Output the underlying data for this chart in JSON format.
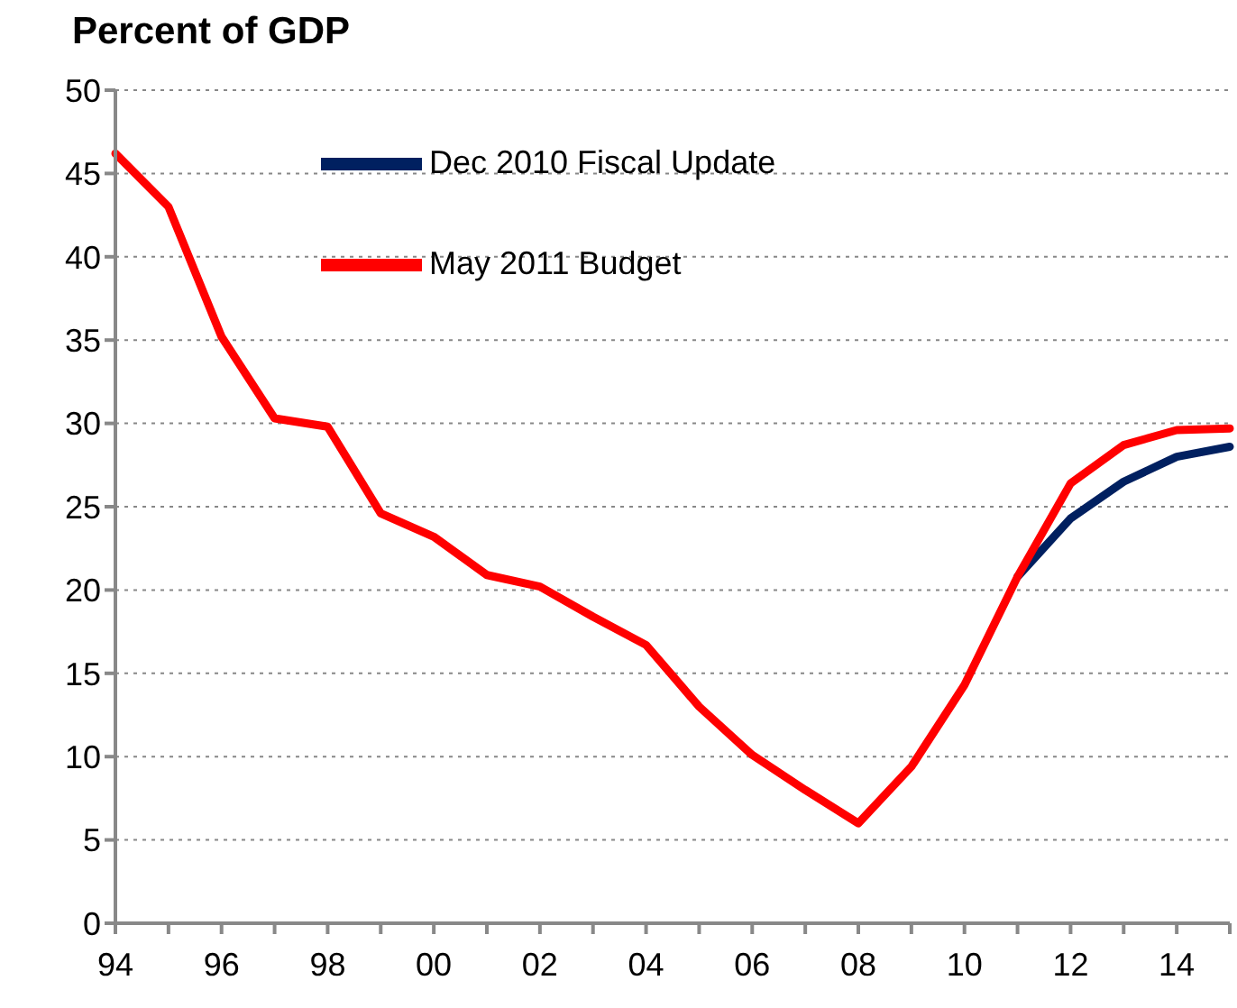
{
  "chart_data": {
    "type": "line",
    "title": "Percent of GDP",
    "categories": [
      "94",
      null,
      "96",
      null,
      "98",
      null,
      "00",
      null,
      "02",
      null,
      "04",
      null,
      "06",
      null,
      "08",
      null,
      "10",
      null,
      "12",
      null,
      "14",
      null
    ],
    "series": [
      {
        "name": "Dec 2010 Fiscal Update",
        "color": "#002060",
        "values": [
          null,
          null,
          null,
          null,
          null,
          null,
          null,
          null,
          null,
          null,
          null,
          null,
          null,
          null,
          null,
          null,
          null,
          20.8,
          24.3,
          26.5,
          28.0,
          28.6
        ]
      },
      {
        "name": "May 2011 Budget",
        "color": "#ff0000",
        "values": [
          46.2,
          43.0,
          35.2,
          30.3,
          29.8,
          24.6,
          23.2,
          20.9,
          20.2,
          18.4,
          16.7,
          13.0,
          10.1,
          8.0,
          6.0,
          9.4,
          14.3,
          20.8,
          26.4,
          28.7,
          29.6,
          29.7
        ]
      }
    ],
    "ylim": [
      0,
      50
    ],
    "yticks": [
      0,
      5,
      10,
      15,
      20,
      25,
      30,
      35,
      40,
      45,
      50
    ],
    "grid": "y",
    "legend": "top left",
    "marker": "none",
    "line_style": "solid"
  }
}
